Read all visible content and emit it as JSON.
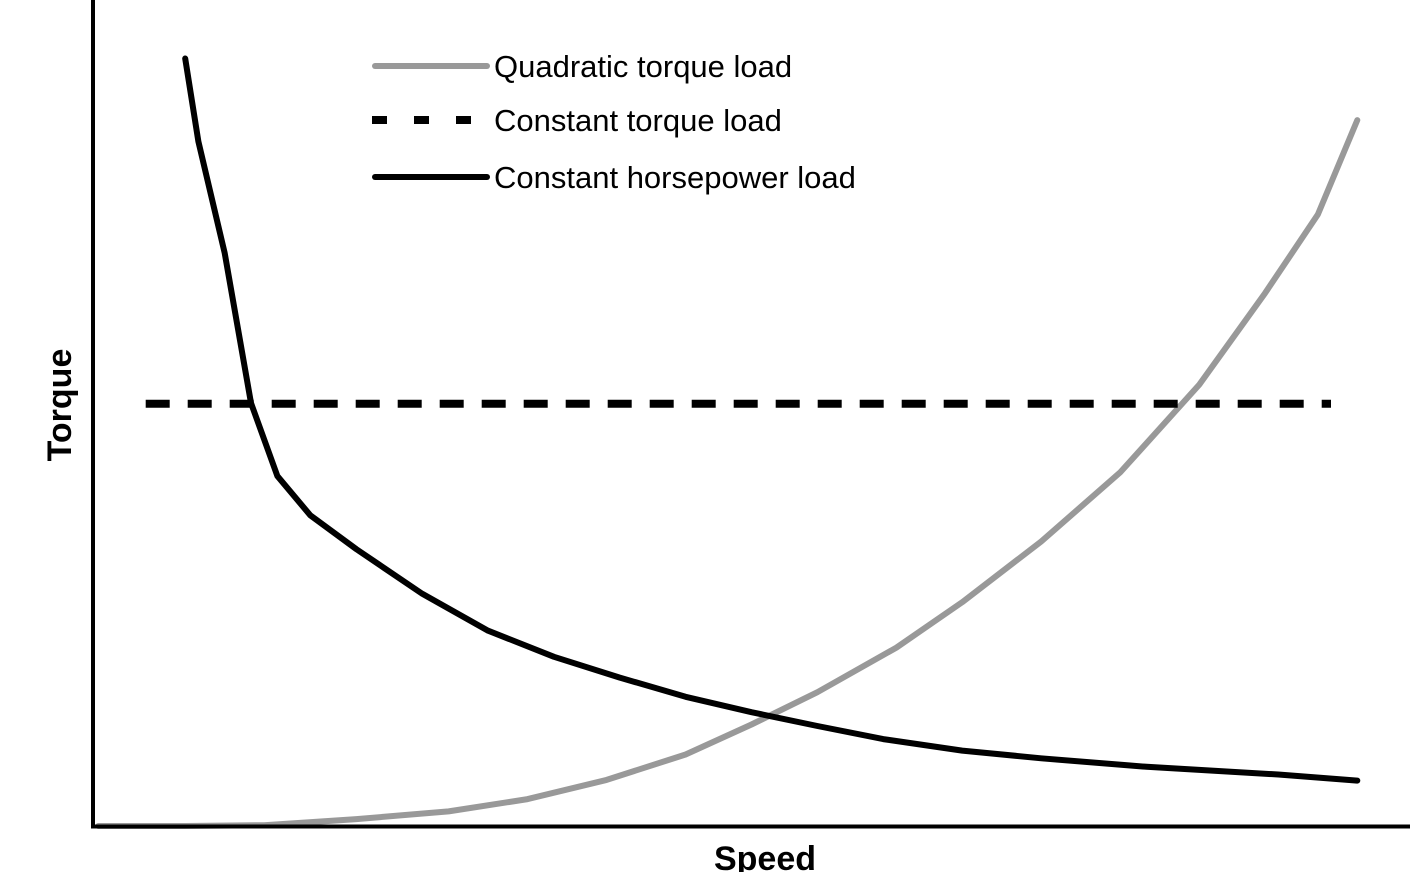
{
  "chart_data": {
    "type": "line",
    "title": "",
    "xlabel": "Speed",
    "ylabel": "Torque",
    "xlim": [
      0,
      1
    ],
    "ylim": [
      0,
      1
    ],
    "grid": false,
    "axis_ticks": false,
    "legend_position": "top-left",
    "series": [
      {
        "name": "Quadratic torque load",
        "color": "#999999",
        "style": "solid",
        "x": [
          0.004,
          0.07,
          0.13,
          0.2,
          0.27,
          0.33,
          0.39,
          0.45,
          0.5,
          0.55,
          0.61,
          0.66,
          0.72,
          0.78,
          0.84,
          0.89,
          0.93,
          0.96
        ],
        "y": [
          0.0,
          0.0,
          0.001,
          0.009,
          0.019,
          0.035,
          0.06,
          0.093,
          0.132,
          0.174,
          0.232,
          0.291,
          0.37,
          0.46,
          0.574,
          0.693,
          0.795,
          0.918
        ]
      },
      {
        "name": "Constant torque load",
        "color": "#000000",
        "style": "dashed",
        "x": [
          0.04,
          0.94
        ],
        "y": [
          0.549,
          0.549
        ]
      },
      {
        "name": "Constant horsepower load",
        "color": "#000000",
        "style": "solid",
        "x": [
          0.07,
          0.08,
          0.1,
          0.12,
          0.14,
          0.165,
          0.2,
          0.25,
          0.3,
          0.35,
          0.4,
          0.45,
          0.5,
          0.55,
          0.6,
          0.66,
          0.72,
          0.8,
          0.9,
          0.96
        ],
        "y": [
          0.998,
          0.89,
          0.745,
          0.55,
          0.455,
          0.404,
          0.36,
          0.302,
          0.254,
          0.22,
          0.193,
          0.168,
          0.148,
          0.13,
          0.113,
          0.098,
          0.088,
          0.077,
          0.067,
          0.059
        ]
      }
    ]
  }
}
